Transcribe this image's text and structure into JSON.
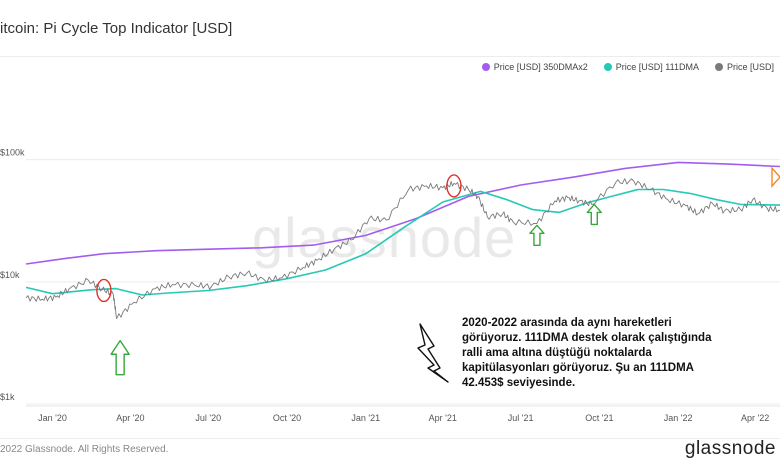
{
  "title": "itcoin: Pi Cycle Top Indicator [USD]",
  "footer": "2022 Glassnode. All Rights Reserved.",
  "brand": "glassnode",
  "watermark": "glassnode",
  "annotation": "2020-2022 arasında da aynı hareketleri görüyoruz. 111DMA destek olarak çalıştığında ralli ama altına düştüğü noktalarda kapitülasyonları görüyoruz. Şu an 111DMA 42.453$ seviyesinde.",
  "colors": {
    "dma350x2": "#a35cf0",
    "dma111": "#25c9b6",
    "price": "#7a7a7a",
    "circle": "#e0302a",
    "arrow_up": "#36a83c",
    "arrow_right": "#f08a2a"
  },
  "chart_data": {
    "type": "line",
    "yscale": "log",
    "ylim": [
      1000,
      120000
    ],
    "xlim": [
      "2019-12-01",
      "2022-04-30"
    ],
    "y_ticks": [
      {
        "value": 1000,
        "label": "$1k"
      },
      {
        "value": 10000,
        "label": "$10k"
      },
      {
        "value": 100000,
        "label": "$100k"
      }
    ],
    "x_ticks": [
      {
        "value": "2020-01-01",
        "label": "Jan '20"
      },
      {
        "value": "2020-04-01",
        "label": "Apr '20"
      },
      {
        "value": "2020-07-01",
        "label": "Jul '20"
      },
      {
        "value": "2020-10-01",
        "label": "Oct '20"
      },
      {
        "value": "2021-01-01",
        "label": "Jan '21"
      },
      {
        "value": "2021-04-01",
        "label": "Apr '21"
      },
      {
        "value": "2021-07-01",
        "label": "Jul '21"
      },
      {
        "value": "2021-10-01",
        "label": "Oct '21"
      },
      {
        "value": "2022-01-01",
        "label": "Jan '22"
      },
      {
        "value": "2022-04-01",
        "label": "Apr '22"
      }
    ],
    "legend_position": "top-right",
    "series": [
      {
        "name": "Price [USD] 350DMAx2",
        "color": "#a35cf0",
        "x": [
          "2019-12-01",
          "2020-01-15",
          "2020-03-01",
          "2020-05-01",
          "2020-07-01",
          "2020-09-01",
          "2020-11-01",
          "2021-01-01",
          "2021-03-01",
          "2021-05-01",
          "2021-07-01",
          "2021-09-01",
          "2021-11-01",
          "2022-01-01",
          "2022-03-01",
          "2022-04-30"
        ],
        "values": [
          14000,
          15500,
          17000,
          18000,
          18500,
          19000,
          20000,
          24000,
          33000,
          50000,
          62000,
          72000,
          85000,
          95000,
          92000,
          88000
        ]
      },
      {
        "name": "Price [USD] 111DMA",
        "color": "#25c9b6",
        "x": [
          "2019-12-01",
          "2020-01-01",
          "2020-02-15",
          "2020-03-15",
          "2020-04-15",
          "2020-05-15",
          "2020-07-01",
          "2020-08-15",
          "2020-10-01",
          "2020-11-15",
          "2021-01-01",
          "2021-02-15",
          "2021-04-01",
          "2021-05-15",
          "2021-06-15",
          "2021-07-15",
          "2021-08-15",
          "2021-09-15",
          "2021-10-15",
          "2021-11-15",
          "2021-12-15",
          "2022-01-15",
          "2022-02-15",
          "2022-03-15",
          "2022-04-30"
        ],
        "values": [
          9000,
          8000,
          8600,
          8800,
          7800,
          8100,
          8500,
          9300,
          10600,
          12500,
          17000,
          28000,
          45000,
          55000,
          47000,
          39000,
          37000,
          44000,
          50000,
          57000,
          57000,
          53000,
          47000,
          43000,
          42453
        ]
      },
      {
        "name": "Price [USD]",
        "color": "#7a7a7a",
        "x": [
          "2019-12-01",
          "2019-12-20",
          "2020-01-05",
          "2020-01-20",
          "2020-02-12",
          "2020-02-28",
          "2020-03-12",
          "2020-03-16",
          "2020-04-05",
          "2020-04-30",
          "2020-05-20",
          "2020-06-15",
          "2020-07-05",
          "2020-07-25",
          "2020-08-15",
          "2020-09-05",
          "2020-09-25",
          "2020-10-20",
          "2020-11-05",
          "2020-11-25",
          "2020-12-15",
          "2021-01-05",
          "2021-01-25",
          "2021-02-20",
          "2021-03-13",
          "2021-04-01",
          "2021-04-14",
          "2021-05-01",
          "2021-05-12",
          "2021-05-23",
          "2021-06-10",
          "2021-06-22",
          "2021-07-20",
          "2021-08-10",
          "2021-08-25",
          "2021-09-07",
          "2021-09-22",
          "2021-10-20",
          "2021-11-10",
          "2021-11-30",
          "2021-12-20",
          "2022-01-10",
          "2022-01-24",
          "2022-02-10",
          "2022-02-24",
          "2022-03-15",
          "2022-03-29",
          "2022-04-15",
          "2022-04-30"
        ],
        "values": [
          7400,
          7200,
          7500,
          8700,
          10300,
          8700,
          7900,
          5000,
          6800,
          8800,
          9500,
          9400,
          9200,
          11000,
          11800,
          10300,
          10800,
          13100,
          15000,
          18500,
          22000,
          33000,
          32000,
          57000,
          61000,
          59000,
          64000,
          57000,
          50000,
          34000,
          36000,
          31000,
          30000,
          46000,
          49000,
          46000,
          43000,
          65000,
          67000,
          57000,
          47000,
          42000,
          36000,
          44000,
          38000,
          39000,
          47000,
          40000,
          38500
        ]
      }
    ],
    "annotations": [
      {
        "type": "circle",
        "x": "2020-03-01",
        "y": 8500
      },
      {
        "type": "circle",
        "x": "2021-04-14",
        "y": 61000
      },
      {
        "type": "arrow_up",
        "x": "2020-03-20",
        "y": 3300
      },
      {
        "type": "arrow_up",
        "x": "2021-07-20",
        "y": 29000
      },
      {
        "type": "arrow_up",
        "x": "2021-09-25",
        "y": 43000
      },
      {
        "type": "arrow_right",
        "x": "2022-04-30",
        "y": 72000
      }
    ]
  }
}
